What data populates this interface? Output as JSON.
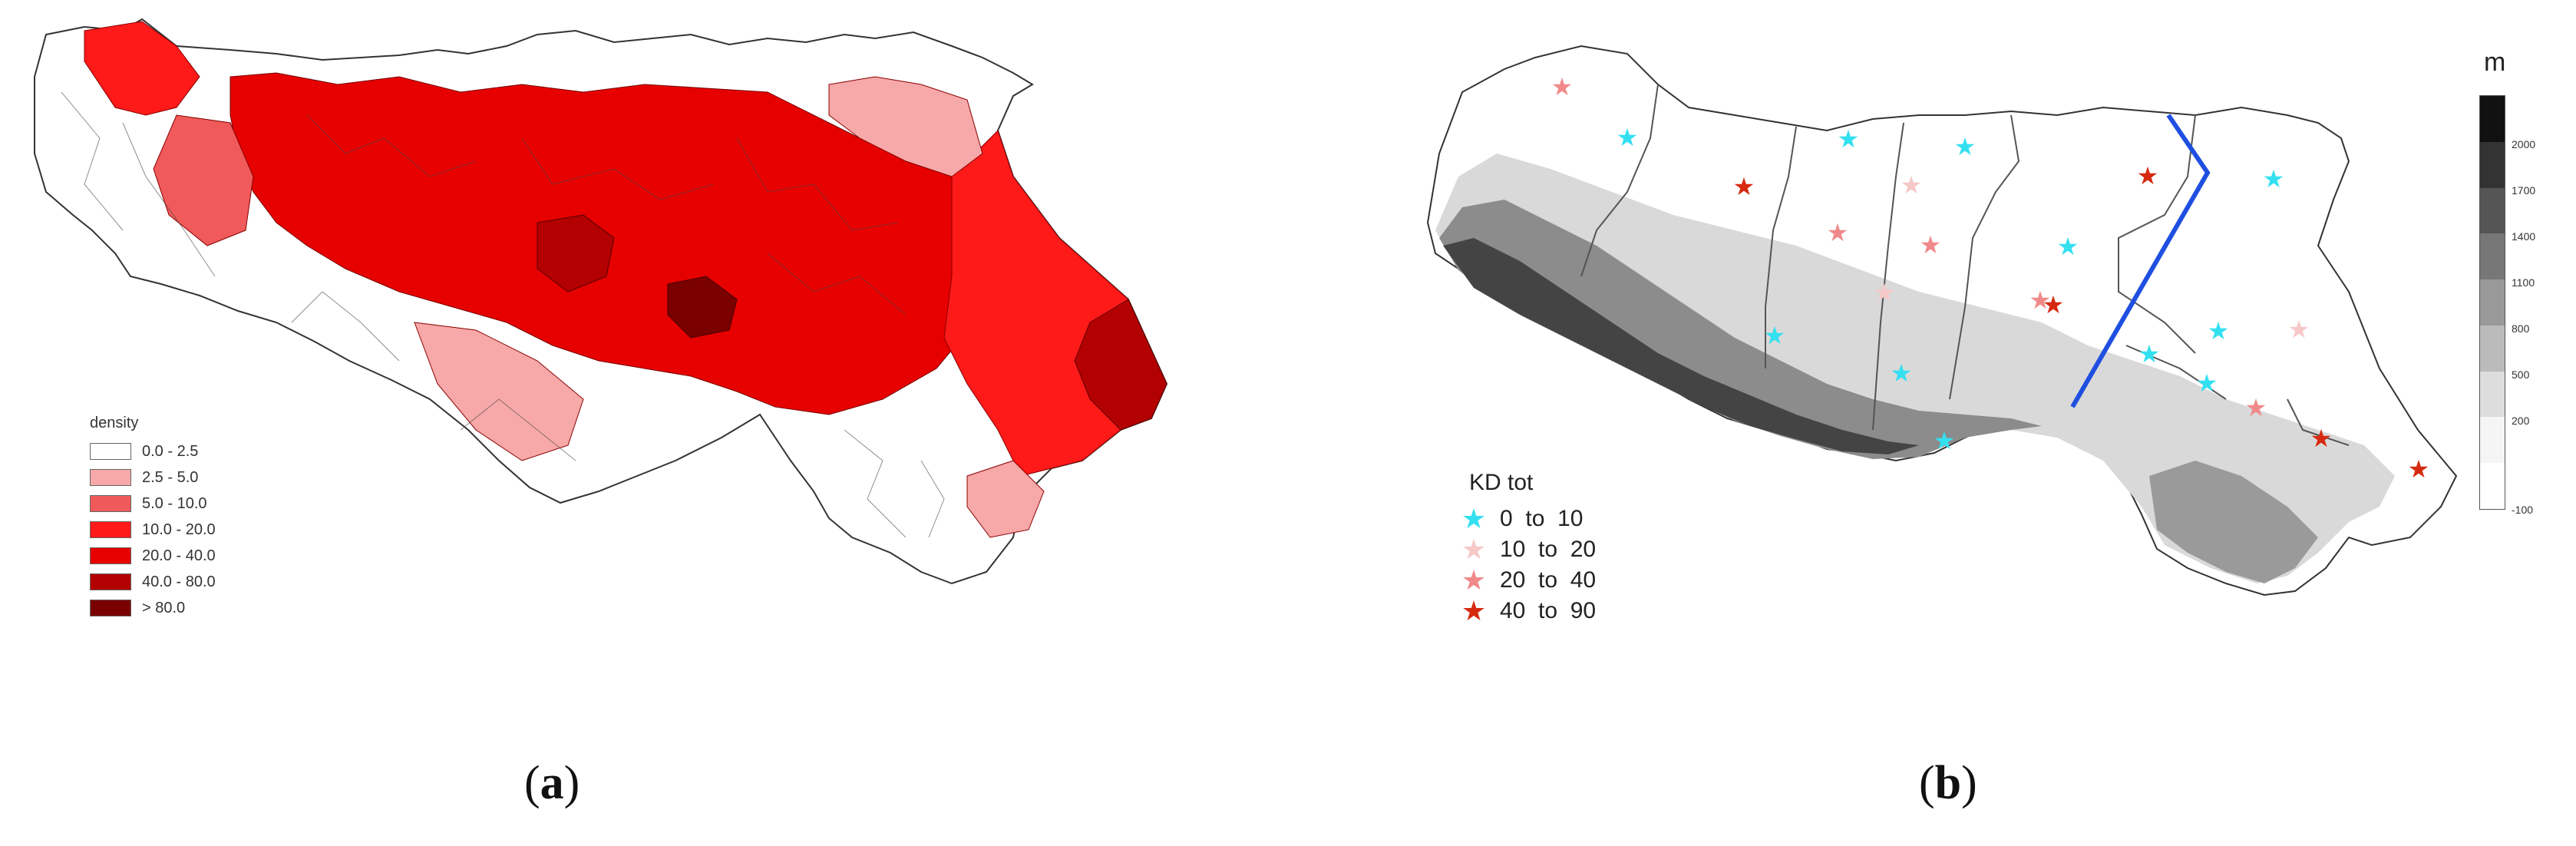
{
  "captions": {
    "a": "a",
    "b": "b"
  },
  "legend_a": {
    "title": "density",
    "items": [
      {
        "label": "0.0 - 2.5",
        "color": "#ffffff"
      },
      {
        "label": "2.5 - 5.0",
        "color": "#f7a8a8"
      },
      {
        "label": "5.0 - 10.0",
        "color": "#f05a5a"
      },
      {
        "label": "10.0 - 20.0",
        "color": "#ff1a1a"
      },
      {
        "label": "20.0 - 40.0",
        "color": "#e60000"
      },
      {
        "label": "40.0 - 80.0",
        "color": "#b30000"
      },
      {
        "label": "> 80.0",
        "color": "#7a0000"
      }
    ]
  },
  "legend_b": {
    "title": "KD tot",
    "items": [
      {
        "label": "0  to  10",
        "color": "#33e0f0"
      },
      {
        "label": "10  to  20",
        "color": "#f6c8c8"
      },
      {
        "label": "20  to  40",
        "color": "#f08a8a"
      },
      {
        "label": "40  to  90",
        "color": "#d62a10"
      }
    ]
  },
  "elevation_scale": {
    "unit": "m",
    "ticks": [
      "2000",
      "1700",
      "1400",
      "1100",
      "800",
      "500",
      "200",
      "-100"
    ],
    "colors": [
      "#111111",
      "#333333",
      "#555555",
      "#777777",
      "#999999",
      "#bbbbbb",
      "#dddddd",
      "#f5f5f5",
      "#ffffff"
    ]
  },
  "map_colors": {
    "outline": "#333333",
    "divider_line": "#1f4fe0",
    "terrain_dark": "#555555",
    "terrain_light": "#e6e6e6"
  }
}
